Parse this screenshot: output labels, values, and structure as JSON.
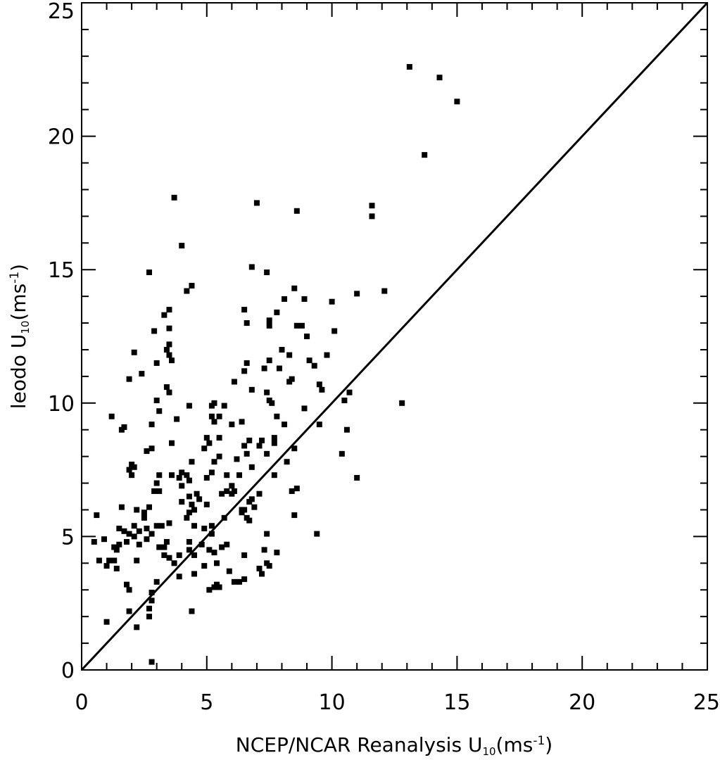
{
  "chart_data": {
    "type": "scatter",
    "xlabel": {
      "main": "NCEP/NCAR Reanalysis U",
      "sub": "10",
      "unit_open": "(ms",
      "sup": "-1",
      "unit_close": ")"
    },
    "ylabel": {
      "main": "leodo U",
      "sub": "10",
      "unit_open": "(ms",
      "sup": "-1",
      "unit_close": ")"
    },
    "xlim": [
      0,
      25
    ],
    "ylim": [
      0,
      25
    ],
    "x_ticks": [
      0,
      5,
      10,
      15,
      20,
      25
    ],
    "y_ticks": [
      0,
      5,
      10,
      15,
      20,
      25
    ],
    "x_tick_labels": [
      "0",
      "5",
      "10",
      "15",
      "20",
      "25"
    ],
    "y_tick_labels": [
      "0",
      "5",
      "10",
      "15",
      "20",
      "25"
    ],
    "grid": false,
    "reference_line": {
      "x": [
        0,
        25
      ],
      "y": [
        0,
        25
      ]
    },
    "points": [
      [
        0.6,
        5.8
      ],
      [
        0.5,
        4.8
      ],
      [
        0.9,
        4.9
      ],
      [
        0.7,
        4.1
      ],
      [
        1.0,
        3.9
      ],
      [
        1.1,
        4.1
      ],
      [
        1.3,
        4.1
      ],
      [
        1.3,
        4.6
      ],
      [
        1.4,
        4.5
      ],
      [
        1.5,
        4.7
      ],
      [
        1.4,
        3.8
      ],
      [
        1.2,
        9.5
      ],
      [
        1.6,
        9.0
      ],
      [
        1.7,
        9.1
      ],
      [
        1.6,
        6.1
      ],
      [
        1.5,
        5.3
      ],
      [
        1.7,
        5.2
      ],
      [
        1.8,
        4.8
      ],
      [
        1.9,
        5.1
      ],
      [
        1.8,
        3.2
      ],
      [
        1.9,
        3.0
      ],
      [
        1.9,
        2.2
      ],
      [
        1.0,
        1.8
      ],
      [
        2.0,
        7.3
      ],
      [
        1.9,
        7.5
      ],
      [
        2.0,
        7.7
      ],
      [
        2.1,
        7.6
      ],
      [
        2.2,
        6.0
      ],
      [
        2.1,
        5.4
      ],
      [
        2.1,
        5.0
      ],
      [
        2.3,
        5.2
      ],
      [
        2.3,
        4.7
      ],
      [
        2.2,
        4.1
      ],
      [
        2.2,
        1.6
      ],
      [
        1.9,
        10.9
      ],
      [
        2.1,
        11.9
      ],
      [
        2.4,
        11.1
      ],
      [
        2.5,
        5.9
      ],
      [
        2.5,
        5.7
      ],
      [
        2.6,
        5.3
      ],
      [
        2.6,
        4.9
      ],
      [
        2.6,
        8.2
      ],
      [
        2.8,
        8.3
      ],
      [
        2.8,
        9.2
      ],
      [
        2.7,
        6.1
      ],
      [
        2.8,
        5.1
      ],
      [
        2.9,
        12.7
      ],
      [
        2.7,
        14.9
      ],
      [
        3.0,
        11.5
      ],
      [
        3.0,
        10.1
      ],
      [
        3.1,
        9.7
      ],
      [
        3.1,
        7.3
      ],
      [
        3.0,
        7.0
      ],
      [
        2.9,
        6.7
      ],
      [
        3.1,
        6.7
      ],
      [
        3.0,
        5.4
      ],
      [
        3.1,
        4.6
      ],
      [
        3.0,
        3.3
      ],
      [
        2.8,
        2.9
      ],
      [
        2.8,
        2.6
      ],
      [
        2.7,
        2.3
      ],
      [
        2.7,
        2.0
      ],
      [
        2.8,
        0.3
      ],
      [
        3.2,
        5.4
      ],
      [
        3.3,
        4.6
      ],
      [
        3.3,
        4.3
      ],
      [
        3.3,
        13.3
      ],
      [
        3.4,
        12.0
      ],
      [
        3.5,
        12.2
      ],
      [
        3.5,
        11.8
      ],
      [
        3.5,
        13.5
      ],
      [
        3.5,
        12.8
      ],
      [
        3.6,
        11.6
      ],
      [
        3.4,
        10.6
      ],
      [
        3.5,
        10.4
      ],
      [
        3.6,
        8.5
      ],
      [
        3.6,
        7.3
      ],
      [
        3.5,
        5.5
      ],
      [
        3.4,
        4.8
      ],
      [
        3.5,
        4.2
      ],
      [
        3.7,
        4.0
      ],
      [
        3.7,
        17.7
      ],
      [
        3.8,
        9.4
      ],
      [
        3.9,
        7.2
      ],
      [
        4.0,
        7.4
      ],
      [
        4.0,
        6.9
      ],
      [
        4.0,
        6.3
      ],
      [
        3.9,
        4.3
      ],
      [
        3.9,
        3.5
      ],
      [
        4.0,
        15.9
      ],
      [
        4.2,
        14.2
      ],
      [
        4.4,
        14.4
      ],
      [
        4.3,
        9.9
      ],
      [
        4.2,
        7.3
      ],
      [
        4.3,
        7.1
      ],
      [
        4.4,
        7.8
      ],
      [
        4.3,
        6.5
      ],
      [
        4.4,
        6.2
      ],
      [
        4.3,
        5.9
      ],
      [
        4.2,
        5.7
      ],
      [
        4.5,
        6.0
      ],
      [
        4.5,
        5.4
      ],
      [
        4.3,
        4.8
      ],
      [
        4.3,
        4.5
      ],
      [
        4.5,
        4.3
      ],
      [
        4.5,
        3.6
      ],
      [
        4.4,
        2.2
      ],
      [
        4.6,
        6.6
      ],
      [
        4.7,
        6.4
      ],
      [
        4.8,
        4.7
      ],
      [
        5.0,
        8.7
      ],
      [
        4.9,
        8.3
      ],
      [
        5.0,
        7.2
      ],
      [
        5.0,
        6.2
      ],
      [
        4.9,
        5.3
      ],
      [
        4.9,
        3.9
      ],
      [
        5.1,
        3.0
      ],
      [
        5.1,
        8.5
      ],
      [
        5.1,
        4.5
      ],
      [
        5.2,
        9.5
      ],
      [
        5.3,
        10.0
      ],
      [
        5.2,
        9.9
      ],
      [
        5.3,
        9.3
      ],
      [
        5.2,
        7.4
      ],
      [
        5.3,
        7.8
      ],
      [
        5.2,
        5.4
      ],
      [
        5.2,
        5.1
      ],
      [
        5.3,
        4.4
      ],
      [
        5.3,
        3.1
      ],
      [
        5.4,
        3.2
      ],
      [
        5.5,
        3.1
      ],
      [
        5.5,
        9.5
      ],
      [
        5.5,
        8.7
      ],
      [
        5.5,
        8.0
      ],
      [
        5.6,
        6.6
      ],
      [
        5.6,
        4.6
      ],
      [
        5.4,
        4.0
      ],
      [
        5.7,
        9.9
      ],
      [
        5.8,
        7.3
      ],
      [
        5.8,
        6.7
      ],
      [
        5.7,
        5.7
      ],
      [
        5.8,
        4.7
      ],
      [
        5.9,
        3.7
      ],
      [
        6.0,
        9.2
      ],
      [
        6.0,
        6.9
      ],
      [
        6.0,
        6.6
      ],
      [
        6.1,
        6.7
      ],
      [
        6.1,
        3.3
      ],
      [
        6.1,
        10.8
      ],
      [
        6.4,
        9.3
      ],
      [
        6.2,
        7.9
      ],
      [
        6.3,
        7.3
      ],
      [
        6.4,
        6.0
      ],
      [
        6.4,
        5.9
      ],
      [
        6.3,
        3.3
      ],
      [
        6.5,
        3.4
      ],
      [
        6.5,
        13.5
      ],
      [
        6.6,
        13.0
      ],
      [
        6.6,
        11.5
      ],
      [
        6.5,
        11.2
      ],
      [
        6.5,
        8.4
      ],
      [
        6.6,
        8.1
      ],
      [
        6.5,
        6.0
      ],
      [
        6.6,
        5.7
      ],
      [
        6.7,
        6.3
      ],
      [
        6.5,
        4.3
      ],
      [
        6.8,
        15.1
      ],
      [
        6.8,
        10.5
      ],
      [
        6.7,
        8.6
      ],
      [
        6.8,
        7.6
      ],
      [
        6.8,
        6.4
      ],
      [
        6.7,
        5.6
      ],
      [
        6.9,
        6.1
      ],
      [
        7.0,
        17.5
      ],
      [
        7.1,
        8.4
      ],
      [
        7.2,
        8.6
      ],
      [
        7.1,
        6.6
      ],
      [
        7.1,
        3.8
      ],
      [
        7.2,
        3.6
      ],
      [
        7.3,
        4.5
      ],
      [
        7.3,
        11.3
      ],
      [
        7.4,
        14.9
      ],
      [
        7.5,
        12.9
      ],
      [
        7.5,
        13.1
      ],
      [
        7.5,
        11.6
      ],
      [
        7.4,
        10.4
      ],
      [
        7.5,
        10.1
      ],
      [
        7.4,
        8.1
      ],
      [
        7.4,
        5.1
      ],
      [
        7.4,
        4.0
      ],
      [
        7.5,
        3.9
      ],
      [
        7.6,
        10.0
      ],
      [
        7.7,
        8.7
      ],
      [
        7.7,
        8.5
      ],
      [
        7.8,
        9.5
      ],
      [
        7.7,
        7.3
      ],
      [
        7.8,
        4.4
      ],
      [
        7.8,
        13.4
      ],
      [
        7.9,
        11.3
      ],
      [
        8.0,
        12.0
      ],
      [
        8.1,
        9.2
      ],
      [
        8.2,
        7.8
      ],
      [
        8.1,
        13.9
      ],
      [
        8.3,
        11.8
      ],
      [
        8.3,
        10.8
      ],
      [
        8.4,
        10.9
      ],
      [
        8.5,
        14.3
      ],
      [
        8.5,
        8.3
      ],
      [
        8.4,
        6.7
      ],
      [
        8.5,
        5.8
      ],
      [
        8.6,
        6.8
      ],
      [
        8.6,
        17.2
      ],
      [
        8.6,
        12.9
      ],
      [
        8.8,
        12.9
      ],
      [
        8.9,
        9.8
      ],
      [
        8.9,
        13.9
      ],
      [
        9.0,
        12.5
      ],
      [
        9.1,
        11.6
      ],
      [
        9.3,
        11.4
      ],
      [
        9.4,
        5.1
      ],
      [
        9.5,
        10.7
      ],
      [
        9.6,
        10.5
      ],
      [
        9.5,
        9.2
      ],
      [
        9.8,
        11.8
      ],
      [
        10.0,
        13.8
      ],
      [
        10.1,
        12.7
      ],
      [
        10.4,
        8.1
      ],
      [
        10.5,
        10.1
      ],
      [
        10.6,
        9.0
      ],
      [
        10.7,
        10.4
      ],
      [
        11.0,
        14.1
      ],
      [
        11.0,
        7.2
      ],
      [
        11.6,
        17.4
      ],
      [
        11.6,
        17.0
      ],
      [
        12.1,
        14.2
      ],
      [
        12.8,
        10.0
      ],
      [
        13.1,
        22.6
      ],
      [
        13.7,
        19.3
      ],
      [
        14.3,
        22.2
      ],
      [
        15.0,
        21.3
      ]
    ]
  }
}
